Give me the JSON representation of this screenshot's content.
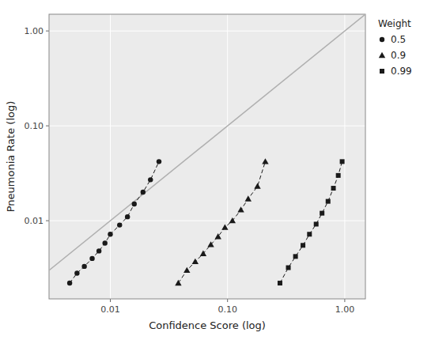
{
  "chart_data": {
    "type": "line",
    "x_label": "Confidence Score (log)",
    "y_label": "Pneumonia Rate (log)",
    "log": true,
    "grid": true,
    "legend": "right",
    "legend_title": "Weight",
    "xlim": [
      0.003,
      1.5
    ],
    "ylim": [
      0.0015,
      1.5
    ],
    "xticks": [
      0.01,
      {
        "value": 0.1,
        "label": "0.10"
      },
      {
        "value": 1,
        "label": "1.00"
      }
    ],
    "yticks": [
      0.01,
      {
        "value": 0.1,
        "label": "0.10"
      },
      {
        "value": 1,
        "label": "1.00"
      }
    ],
    "reference_line": {
      "x": [
        0.003,
        1.5
      ],
      "y": [
        0.003,
        1.5
      ],
      "color": "#b0b0b0"
    },
    "series": [
      {
        "name": "0.5",
        "marker": "circle",
        "line_style": "dashed",
        "color": "#1a1a1a",
        "x": [
          0.0045,
          0.0052,
          0.006,
          0.007,
          0.008,
          0.009,
          0.01,
          0.012,
          0.014,
          0.016,
          0.019,
          0.022,
          0.026
        ],
        "values": [
          0.0022,
          0.0028,
          0.0033,
          0.004,
          0.0048,
          0.0058,
          0.0072,
          0.009,
          0.011,
          0.015,
          0.02,
          0.027,
          0.042
        ]
      },
      {
        "name": "0.9",
        "marker": "triangle",
        "line_style": "dashed",
        "color": "#1a1a1a",
        "x": [
          0.038,
          0.045,
          0.053,
          0.062,
          0.072,
          0.083,
          0.095,
          0.11,
          0.13,
          0.15,
          0.18,
          0.21
        ],
        "values": [
          0.0022,
          0.003,
          0.0037,
          0.0045,
          0.0056,
          0.0068,
          0.0085,
          0.01,
          0.013,
          0.017,
          0.023,
          0.042
        ]
      },
      {
        "name": "0.99",
        "marker": "square",
        "line_style": "dashed",
        "color": "#1a1a1a",
        "x": [
          0.28,
          0.33,
          0.38,
          0.44,
          0.5,
          0.57,
          0.64,
          0.72,
          0.8,
          0.88,
          0.95
        ],
        "values": [
          0.0022,
          0.0032,
          0.0042,
          0.0055,
          0.0072,
          0.0092,
          0.012,
          0.016,
          0.022,
          0.03,
          0.042
        ]
      }
    ]
  }
}
